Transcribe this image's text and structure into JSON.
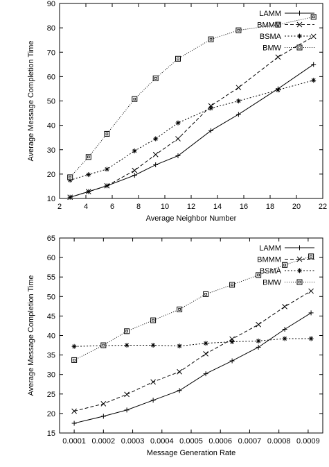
{
  "chart_data": [
    {
      "type": "line",
      "xlabel": "Average Neighbor Number",
      "ylabel": "Average Message Completion Time",
      "xlim": [
        2,
        22
      ],
      "ylim": [
        10,
        90
      ],
      "xticks": [
        2,
        4,
        6,
        8,
        10,
        12,
        14,
        16,
        18,
        20,
        22
      ],
      "yticks": [
        10,
        20,
        30,
        40,
        50,
        60,
        70,
        80,
        90
      ],
      "grid": false,
      "legend_position": "top-right",
      "series": [
        {
          "name": "LAMM",
          "marker": "plus",
          "dash": "solid",
          "x": [
            2.8,
            4.2,
            5.6,
            7.7,
            9.3,
            11.0,
            13.5,
            15.6,
            18.6,
            21.3
          ],
          "y": [
            10.5,
            12.8,
            15.2,
            19.5,
            23.8,
            27.5,
            37.8,
            44.5,
            55.0,
            65.0
          ]
        },
        {
          "name": "BMMM",
          "marker": "x",
          "dash": "dashed",
          "x": [
            2.8,
            4.2,
            5.6,
            7.7,
            9.3,
            11.0,
            13.5,
            15.6,
            18.6,
            21.3
          ],
          "y": [
            10.5,
            12.8,
            15.2,
            21.5,
            28.0,
            34.5,
            48.0,
            55.5,
            68.0,
            76.5
          ]
        },
        {
          "name": "BSMA",
          "marker": "star",
          "dash": "dotted",
          "x": [
            2.8,
            4.2,
            5.6,
            7.7,
            9.3,
            11.0,
            13.5,
            15.6,
            18.6,
            21.3
          ],
          "y": [
            17.5,
            19.8,
            22.0,
            29.5,
            34.5,
            41.0,
            47.0,
            50.0,
            54.5,
            58.5
          ]
        },
        {
          "name": "BMW",
          "marker": "square",
          "dash": "fine-dotted",
          "x": [
            2.8,
            4.2,
            5.6,
            7.7,
            9.3,
            11.0,
            13.5,
            15.6,
            18.6,
            21.3
          ],
          "y": [
            18.7,
            27.0,
            36.5,
            50.8,
            59.3,
            67.3,
            75.3,
            79.0,
            81.3,
            84.5
          ]
        }
      ]
    },
    {
      "type": "line",
      "xlabel": "Message Generation Rate",
      "ylabel": "Average Message Completion Time",
      "xlim": [
        5e-05,
        0.00095
      ],
      "ylim": [
        15,
        65
      ],
      "xticks": [
        "0.0001",
        "0.0002",
        "0.0003",
        "0.0004",
        "0.0005",
        "0.0006",
        "0.0007",
        "0.0008",
        "0.0009"
      ],
      "yticks": [
        15,
        20,
        25,
        30,
        35,
        40,
        45,
        50,
        55,
        60,
        65
      ],
      "grid": false,
      "legend_position": "top-right",
      "series": [
        {
          "name": "LAMM",
          "marker": "plus",
          "dash": "solid",
          "x": [
            0.0001,
            0.0002,
            0.00028,
            0.00037,
            0.00046,
            0.00055,
            0.00064,
            0.00073,
            0.00082,
            0.00091
          ],
          "y": [
            17.5,
            19.3,
            20.9,
            23.4,
            25.9,
            30.2,
            33.5,
            37.0,
            41.6,
            45.8
          ]
        },
        {
          "name": "BMMM",
          "marker": "x",
          "dash": "dashed",
          "x": [
            0.0001,
            0.0002,
            0.00028,
            0.00037,
            0.00046,
            0.00055,
            0.00064,
            0.00073,
            0.00082,
            0.00091
          ],
          "y": [
            20.6,
            22.5,
            24.9,
            28.1,
            30.7,
            35.3,
            39.1,
            42.8,
            47.4,
            51.4
          ]
        },
        {
          "name": "BSMA",
          "marker": "star",
          "dash": "dotted",
          "x": [
            0.0001,
            0.0002,
            0.00028,
            0.00037,
            0.00046,
            0.00055,
            0.00064,
            0.00073,
            0.00082,
            0.00091
          ],
          "y": [
            37.2,
            37.4,
            37.5,
            37.5,
            37.3,
            38.0,
            38.4,
            38.6,
            39.2,
            39.2
          ]
        },
        {
          "name": "BMW",
          "marker": "square",
          "dash": "fine-dotted",
          "x": [
            0.0001,
            0.0002,
            0.00028,
            0.00037,
            0.00046,
            0.00055,
            0.00064,
            0.00073,
            0.00082,
            0.00091
          ],
          "y": [
            33.7,
            37.5,
            41.1,
            43.9,
            46.7,
            50.6,
            53.0,
            55.5,
            58.1,
            60.3
          ]
        }
      ]
    }
  ]
}
